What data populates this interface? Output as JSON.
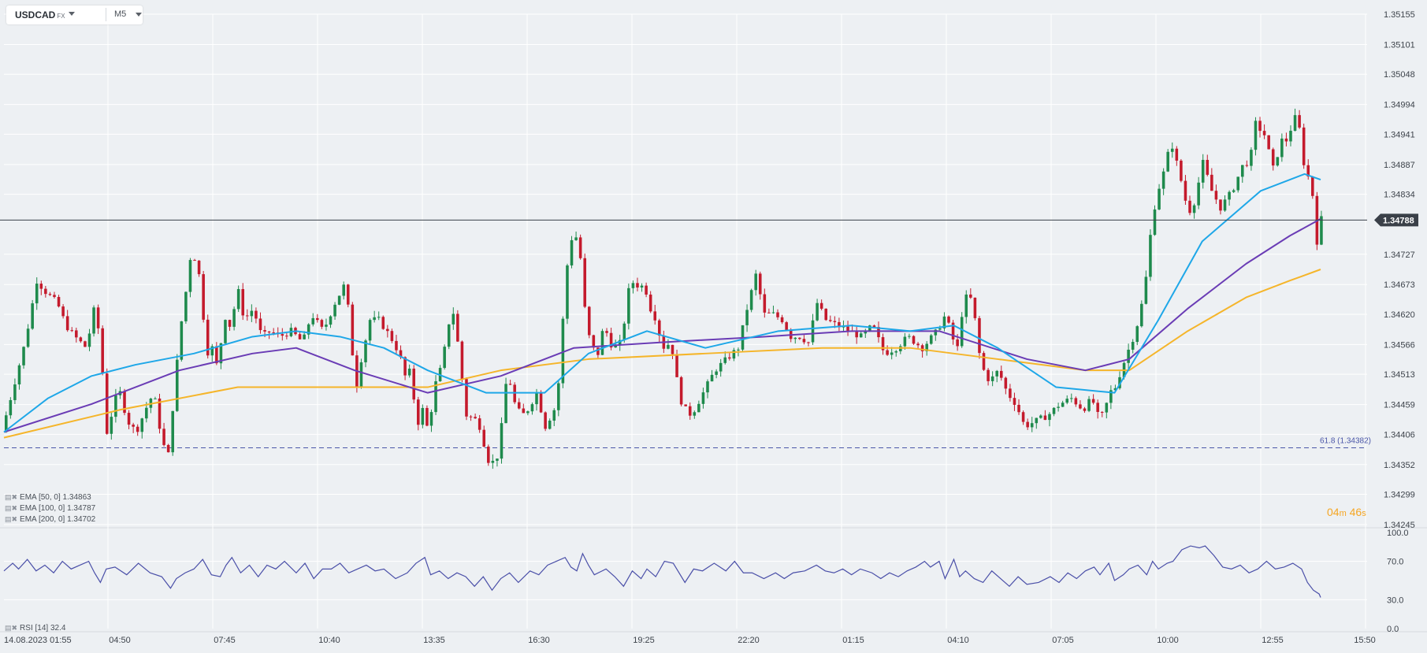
{
  "symbol": {
    "name": "USDCAD",
    "market": "FX",
    "timeframe": "M5"
  },
  "chart_data": {
    "type": "candlestick",
    "x_axis": {
      "start_label": "14.08.2023 01:55",
      "labels": [
        "04:50",
        "07:45",
        "10:40",
        "13:35",
        "16:30",
        "19:25",
        "22:20",
        "01:15",
        "04:10",
        "07:05",
        "10:00",
        "12:55",
        "15:50"
      ]
    },
    "y_axis": {
      "min": 1.34245,
      "max": 1.35155,
      "labels": [
        "1.35155",
        "1.35101",
        "1.35048",
        "1.34994",
        "1.34941",
        "1.34887",
        "1.34834",
        "1.34727",
        "1.34673",
        "1.34620",
        "1.34566",
        "1.34513",
        "1.34459",
        "1.34406",
        "1.34352",
        "1.34299",
        "1.34245"
      ]
    },
    "current_price": {
      "value": 1.34788,
      "label": "1.34788"
    },
    "fib_level": {
      "value": 1.34382,
      "label": "61.8 (1.34382)"
    },
    "indicators": [
      {
        "name": "EMA",
        "params": "[50, 0]",
        "value": "1.34863",
        "color": "#1ea7e8"
      },
      {
        "name": "EMA",
        "params": "[100, 0]",
        "value": "1.34787",
        "color": "#6a3cb5"
      },
      {
        "name": "EMA",
        "params": "[200, 0]",
        "value": "1.34702",
        "color": "#f5b52a"
      }
    ],
    "rsi": {
      "name": "RSI",
      "params": "[14]",
      "value": "32.4",
      "levels": [
        "100.0",
        "70.0",
        "30.0",
        "0.0"
      ],
      "color": "#4a4fa8"
    },
    "candle_colors": {
      "up": "#1e8a4c",
      "down": "#c41a2c"
    },
    "price_path": [
      [
        0,
        1.3441
      ],
      [
        8,
        1.3449
      ],
      [
        16,
        1.3457
      ],
      [
        24,
        1.3468
      ],
      [
        30,
        1.3466
      ],
      [
        38,
        1.3464
      ],
      [
        44,
        1.346
      ],
      [
        50,
        1.3458
      ],
      [
        58,
        1.3456
      ],
      [
        64,
        1.3464
      ],
      [
        68,
        1.3455
      ],
      [
        72,
        1.3441
      ],
      [
        80,
        1.3449
      ],
      [
        86,
        1.3443
      ],
      [
        92,
        1.3441
      ],
      [
        100,
        1.3446
      ],
      [
        104,
        1.3448
      ],
      [
        110,
        1.3439
      ],
      [
        114,
        1.3437
      ],
      [
        118,
        1.3448
      ],
      [
        122,
        1.3459
      ],
      [
        126,
        1.3466
      ],
      [
        130,
        1.3474
      ],
      [
        136,
        1.3468
      ],
      [
        140,
        1.3455
      ],
      [
        144,
        1.3456
      ],
      [
        148,
        1.3452
      ],
      [
        152,
        1.3462
      ],
      [
        156,
        1.346
      ],
      [
        162,
        1.3466
      ],
      [
        166,
        1.3461
      ],
      [
        172,
        1.3463
      ],
      [
        178,
        1.3458
      ],
      [
        184,
        1.3459
      ],
      [
        190,
        1.3458
      ],
      [
        198,
        1.3459
      ],
      [
        206,
        1.3457
      ],
      [
        212,
        1.3462
      ],
      [
        220,
        1.3459
      ],
      [
        228,
        1.3464
      ],
      [
        234,
        1.3467
      ],
      [
        238,
        1.3462
      ],
      [
        242,
        1.3448
      ],
      [
        246,
        1.3454
      ],
      [
        252,
        1.3461
      ],
      [
        258,
        1.3461
      ],
      [
        266,
        1.3458
      ],
      [
        272,
        1.3455
      ],
      [
        276,
        1.3451
      ],
      [
        280,
        1.3452
      ],
      [
        284,
        1.3442
      ],
      [
        288,
        1.3445
      ],
      [
        292,
        1.3441
      ],
      [
        296,
        1.3449
      ],
      [
        300,
        1.3452
      ],
      [
        304,
        1.3457
      ],
      [
        308,
        1.3464
      ],
      [
        312,
        1.3457
      ],
      [
        318,
        1.3444
      ],
      [
        326,
        1.3443
      ],
      [
        334,
        1.3435
      ],
      [
        340,
        1.3437
      ],
      [
        346,
        1.3452
      ],
      [
        352,
        1.3445
      ],
      [
        358,
        1.3444
      ],
      [
        366,
        1.3448
      ],
      [
        372,
        1.3442
      ],
      [
        380,
        1.3446
      ],
      [
        384,
        1.3461
      ],
      [
        388,
        1.3474
      ],
      [
        392,
        1.3477
      ],
      [
        396,
        1.3472
      ],
      [
        400,
        1.346
      ],
      [
        404,
        1.3456
      ],
      [
        408,
        1.3455
      ],
      [
        412,
        1.346
      ],
      [
        418,
        1.3456
      ],
      [
        424,
        1.3457
      ],
      [
        430,
        1.3468
      ],
      [
        436,
        1.3467
      ],
      [
        440,
        1.3467
      ],
      [
        444,
        1.3463
      ],
      [
        448,
        1.3461
      ],
      [
        452,
        1.3456
      ],
      [
        458,
        1.3457
      ],
      [
        464,
        1.3447
      ],
      [
        468,
        1.3445
      ],
      [
        472,
        1.3444
      ],
      [
        480,
        1.3448
      ],
      [
        488,
        1.3452
      ],
      [
        496,
        1.3454
      ],
      [
        504,
        1.3456
      ],
      [
        510,
        1.3463
      ],
      [
        516,
        1.3469
      ],
      [
        522,
        1.3462
      ],
      [
        528,
        1.3462
      ],
      [
        534,
        1.3461
      ],
      [
        540,
        1.3458
      ],
      [
        546,
        1.3458
      ],
      [
        552,
        1.3457
      ],
      [
        558,
        1.3464
      ],
      [
        564,
        1.3461
      ],
      [
        572,
        1.346
      ],
      [
        580,
        1.3459
      ],
      [
        588,
        1.3458
      ],
      [
        596,
        1.346
      ],
      [
        604,
        1.3455
      ],
      [
        612,
        1.3456
      ],
      [
        620,
        1.3458
      ],
      [
        630,
        1.3456
      ],
      [
        640,
        1.3459
      ],
      [
        646,
        1.3462
      ],
      [
        650,
        1.3458
      ],
      [
        654,
        1.3456
      ],
      [
        658,
        1.3464
      ],
      [
        662,
        1.3466
      ],
      [
        666,
        1.3461
      ],
      [
        670,
        1.3453
      ],
      [
        676,
        1.345
      ],
      [
        682,
        1.3452
      ],
      [
        688,
        1.3448
      ],
      [
        694,
        1.3446
      ],
      [
        700,
        1.3442
      ],
      [
        708,
        1.3443
      ],
      [
        716,
        1.3444
      ],
      [
        724,
        1.3446
      ],
      [
        732,
        1.3447
      ],
      [
        740,
        1.3445
      ],
      [
        746,
        1.3447
      ],
      [
        750,
        1.3444
      ],
      [
        754,
        1.3444
      ],
      [
        758,
        1.3448
      ],
      [
        762,
        1.3449
      ],
      [
        770,
        1.3455
      ],
      [
        776,
        1.3459
      ],
      [
        782,
        1.3466
      ],
      [
        786,
        1.3476
      ],
      [
        790,
        1.3483
      ],
      [
        796,
        1.3488
      ],
      [
        800,
        1.3493
      ],
      [
        806,
        1.3487
      ],
      [
        812,
        1.348
      ],
      [
        816,
        1.3482
      ],
      [
        822,
        1.3489
      ],
      [
        828,
        1.3484
      ],
      [
        834,
        1.3481
      ],
      [
        842,
        1.3484
      ],
      [
        850,
        1.3489
      ],
      [
        854,
        1.3489
      ],
      [
        858,
        1.3496
      ],
      [
        864,
        1.3494
      ],
      [
        870,
        1.3488
      ],
      [
        876,
        1.3493
      ],
      [
        880,
        1.3493
      ],
      [
        884,
        1.3497
      ],
      [
        886,
        1.3497
      ],
      [
        888,
        1.3495
      ],
      [
        892,
        1.3487
      ],
      [
        896,
        1.3486
      ],
      [
        900,
        1.3475
      ],
      [
        901,
        1.3479
      ]
    ],
    "ema50_path": [
      [
        0,
        1.3441
      ],
      [
        30,
        1.3447
      ],
      [
        60,
        1.3451
      ],
      [
        90,
        1.3453
      ],
      [
        130,
        1.3455
      ],
      [
        170,
        1.3458
      ],
      [
        200,
        1.3459
      ],
      [
        230,
        1.3458
      ],
      [
        260,
        1.3456
      ],
      [
        290,
        1.3452
      ],
      [
        330,
        1.3448
      ],
      [
        370,
        1.3448
      ],
      [
        400,
        1.3455
      ],
      [
        440,
        1.3459
      ],
      [
        480,
        1.3456
      ],
      [
        530,
        1.3459
      ],
      [
        580,
        1.346
      ],
      [
        620,
        1.3459
      ],
      [
        650,
        1.346
      ],
      [
        680,
        1.3456
      ],
      [
        720,
        1.3449
      ],
      [
        760,
        1.3448
      ],
      [
        790,
        1.3461
      ],
      [
        820,
        1.3475
      ],
      [
        860,
        1.3484
      ],
      [
        890,
        1.3487
      ],
      [
        901,
        1.3486
      ]
    ],
    "ema100_path": [
      [
        0,
        1.3441
      ],
      [
        60,
        1.3446
      ],
      [
        120,
        1.3452
      ],
      [
        170,
        1.3455
      ],
      [
        200,
        1.3456
      ],
      [
        240,
        1.3452
      ],
      [
        290,
        1.3448
      ],
      [
        340,
        1.3451
      ],
      [
        390,
        1.3456
      ],
      [
        450,
        1.3457
      ],
      [
        520,
        1.3458
      ],
      [
        580,
        1.3459
      ],
      [
        640,
        1.3459
      ],
      [
        700,
        1.3454
      ],
      [
        740,
        1.3452
      ],
      [
        770,
        1.3454
      ],
      [
        810,
        1.3463
      ],
      [
        850,
        1.3471
      ],
      [
        880,
        1.3476
      ],
      [
        901,
        1.3479
      ]
    ],
    "ema200_path": [
      [
        0,
        1.344
      ],
      [
        80,
        1.3445
      ],
      [
        160,
        1.3449
      ],
      [
        240,
        1.3449
      ],
      [
        290,
        1.3449
      ],
      [
        340,
        1.3452
      ],
      [
        400,
        1.3454
      ],
      [
        480,
        1.3455
      ],
      [
        560,
        1.3456
      ],
      [
        620,
        1.3456
      ],
      [
        680,
        1.3454
      ],
      [
        740,
        1.3452
      ],
      [
        770,
        1.3452
      ],
      [
        810,
        1.3459
      ],
      [
        850,
        1.3465
      ],
      [
        880,
        1.3468
      ],
      [
        901,
        1.347
      ]
    ],
    "rsi_path": [
      [
        0,
        60
      ],
      [
        6,
        68
      ],
      [
        10,
        62
      ],
      [
        16,
        72
      ],
      [
        22,
        60
      ],
      [
        28,
        66
      ],
      [
        34,
        58
      ],
      [
        40,
        70
      ],
      [
        46,
        62
      ],
      [
        52,
        66
      ],
      [
        58,
        70
      ],
      [
        62,
        58
      ],
      [
        66,
        48
      ],
      [
        70,
        62
      ],
      [
        76,
        64
      ],
      [
        84,
        56
      ],
      [
        92,
        68
      ],
      [
        100,
        58
      ],
      [
        108,
        54
      ],
      [
        114,
        42
      ],
      [
        118,
        52
      ],
      [
        124,
        58
      ],
      [
        130,
        62
      ],
      [
        136,
        72
      ],
      [
        142,
        56
      ],
      [
        148,
        54
      ],
      [
        152,
        66
      ],
      [
        156,
        74
      ],
      [
        162,
        58
      ],
      [
        168,
        66
      ],
      [
        174,
        54
      ],
      [
        180,
        66
      ],
      [
        186,
        62
      ],
      [
        192,
        70
      ],
      [
        200,
        58
      ],
      [
        206,
        68
      ],
      [
        212,
        52
      ],
      [
        218,
        62
      ],
      [
        224,
        62
      ],
      [
        230,
        68
      ],
      [
        236,
        58
      ],
      [
        242,
        62
      ],
      [
        248,
        66
      ],
      [
        254,
        60
      ],
      [
        260,
        62
      ],
      [
        268,
        52
      ],
      [
        276,
        58
      ],
      [
        282,
        68
      ],
      [
        288,
        74
      ],
      [
        292,
        56
      ],
      [
        298,
        60
      ],
      [
        304,
        52
      ],
      [
        310,
        58
      ],
      [
        316,
        54
      ],
      [
        322,
        44
      ],
      [
        328,
        54
      ],
      [
        334,
        40
      ],
      [
        340,
        52
      ],
      [
        346,
        58
      ],
      [
        352,
        48
      ],
      [
        360,
        60
      ],
      [
        366,
        56
      ],
      [
        372,
        66
      ],
      [
        378,
        70
      ],
      [
        384,
        74
      ],
      [
        388,
        64
      ],
      [
        392,
        60
      ],
      [
        396,
        78
      ],
      [
        400,
        66
      ],
      [
        404,
        56
      ],
      [
        412,
        62
      ],
      [
        418,
        54
      ],
      [
        424,
        44
      ],
      [
        430,
        60
      ],
      [
        436,
        52
      ],
      [
        440,
        62
      ],
      [
        446,
        54
      ],
      [
        452,
        70
      ],
      [
        458,
        68
      ],
      [
        466,
        48
      ],
      [
        472,
        62
      ],
      [
        478,
        60
      ],
      [
        486,
        68
      ],
      [
        494,
        60
      ],
      [
        500,
        70
      ],
      [
        506,
        58
      ],
      [
        512,
        58
      ],
      [
        520,
        52
      ],
      [
        528,
        58
      ],
      [
        534,
        52
      ],
      [
        540,
        58
      ],
      [
        548,
        60
      ],
      [
        556,
        66
      ],
      [
        562,
        60
      ],
      [
        568,
        58
      ],
      [
        574,
        62
      ],
      [
        580,
        56
      ],
      [
        586,
        62
      ],
      [
        594,
        58
      ],
      [
        600,
        52
      ],
      [
        606,
        58
      ],
      [
        612,
        54
      ],
      [
        618,
        60
      ],
      [
        624,
        64
      ],
      [
        630,
        70
      ],
      [
        634,
        64
      ],
      [
        640,
        70
      ],
      [
        644,
        52
      ],
      [
        650,
        72
      ],
      [
        654,
        54
      ],
      [
        658,
        60
      ],
      [
        664,
        52
      ],
      [
        670,
        48
      ],
      [
        676,
        60
      ],
      [
        682,
        52
      ],
      [
        688,
        44
      ],
      [
        694,
        54
      ],
      [
        700,
        46
      ],
      [
        708,
        48
      ],
      [
        716,
        54
      ],
      [
        722,
        48
      ],
      [
        728,
        58
      ],
      [
        734,
        52
      ],
      [
        740,
        60
      ],
      [
        746,
        64
      ],
      [
        750,
        56
      ],
      [
        756,
        68
      ],
      [
        760,
        50
      ],
      [
        766,
        56
      ],
      [
        770,
        62
      ],
      [
        776,
        66
      ],
      [
        782,
        56
      ],
      [
        786,
        70
      ],
      [
        790,
        62
      ],
      [
        796,
        68
      ],
      [
        800,
        70
      ],
      [
        806,
        82
      ],
      [
        812,
        86
      ],
      [
        818,
        84
      ],
      [
        822,
        86
      ],
      [
        828,
        76
      ],
      [
        834,
        64
      ],
      [
        840,
        62
      ],
      [
        846,
        66
      ],
      [
        852,
        58
      ],
      [
        858,
        62
      ],
      [
        864,
        70
      ],
      [
        870,
        62
      ],
      [
        876,
        64
      ],
      [
        882,
        68
      ],
      [
        888,
        62
      ],
      [
        892,
        48
      ],
      [
        896,
        40
      ],
      [
        900,
        36
      ],
      [
        901,
        32.4
      ]
    ]
  }
}
